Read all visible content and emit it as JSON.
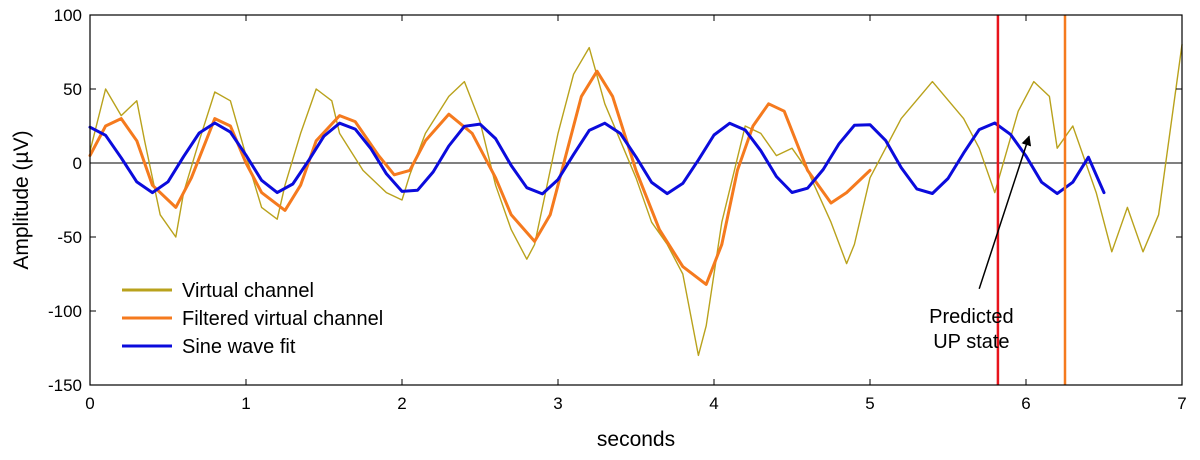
{
  "chart_data": {
    "type": "line",
    "xlabel": "seconds",
    "ylabel": "Amplitude (µV)",
    "xlim": [
      0,
      7
    ],
    "ylim": [
      -150,
      100
    ],
    "x_ticks": [
      0,
      1,
      2,
      3,
      4,
      5,
      6,
      7
    ],
    "y_ticks": [
      100,
      50,
      0,
      -50,
      -100,
      -150
    ],
    "grid": false,
    "zero_line": true,
    "legend_position": "bottom-left",
    "series": [
      {
        "name": "Virtual channel",
        "color": "#b9a21c",
        "x": [
          0,
          0.1,
          0.2,
          0.3,
          0.35,
          0.45,
          0.55,
          0.6,
          0.7,
          0.8,
          0.9,
          1.0,
          1.1,
          1.2,
          1.25,
          1.35,
          1.45,
          1.55,
          1.6,
          1.75,
          1.9,
          2.0,
          2.05,
          2.15,
          2.3,
          2.4,
          2.5,
          2.6,
          2.7,
          2.8,
          2.85,
          2.9,
          3.0,
          3.1,
          3.2,
          3.3,
          3.4,
          3.5,
          3.6,
          3.7,
          3.8,
          3.9,
          3.95,
          4.05,
          4.2,
          4.3,
          4.4,
          4.5,
          4.6,
          4.75,
          4.85,
          4.9,
          5.0,
          5.2,
          5.4,
          5.6,
          5.7,
          5.8,
          5.95,
          6.05,
          6.15,
          6.2,
          6.3,
          6.45,
          6.55,
          6.65,
          6.75,
          6.85,
          7.0
        ],
        "values": [
          8,
          50,
          32,
          42,
          15,
          -35,
          -50,
          -20,
          15,
          48,
          42,
          5,
          -30,
          -38,
          -15,
          20,
          50,
          42,
          20,
          -5,
          -20,
          -25,
          -8,
          20,
          45,
          55,
          28,
          -15,
          -45,
          -65,
          -55,
          -30,
          20,
          60,
          78,
          40,
          15,
          -10,
          -40,
          -55,
          -75,
          -130,
          -110,
          -40,
          25,
          20,
          5,
          10,
          -5,
          -40,
          -68,
          -55,
          -10,
          30,
          55,
          30,
          10,
          -20,
          35,
          55,
          45,
          10,
          25,
          -20,
          -60,
          -30,
          -60,
          -35,
          80
        ]
      },
      {
        "name": "Filtered virtual channel",
        "color": "#f57a1e",
        "x": [
          0,
          0.1,
          0.2,
          0.3,
          0.4,
          0.55,
          0.65,
          0.8,
          0.9,
          1.0,
          1.1,
          1.25,
          1.35,
          1.45,
          1.6,
          1.7,
          1.85,
          1.95,
          2.05,
          2.15,
          2.3,
          2.45,
          2.6,
          2.7,
          2.85,
          2.95,
          3.05,
          3.15,
          3.25,
          3.35,
          3.5,
          3.65,
          3.8,
          3.95,
          4.05,
          4.15,
          4.25,
          4.35,
          4.45,
          4.6,
          4.75,
          4.85,
          5.0
        ],
        "values": [
          5,
          25,
          30,
          15,
          -15,
          -30,
          -10,
          30,
          25,
          0,
          -20,
          -32,
          -15,
          15,
          32,
          28,
          5,
          -8,
          -5,
          15,
          33,
          20,
          -10,
          -35,
          -53,
          -35,
          5,
          45,
          62,
          45,
          -5,
          -45,
          -70,
          -82,
          -55,
          -5,
          25,
          40,
          35,
          -5,
          -27,
          -20,
          -5
        ]
      },
      {
        "name": "Sine wave fit",
        "color": "#0b0bdc",
        "x": [
          0,
          0.1,
          0.2,
          0.3,
          0.4,
          0.5,
          0.6,
          0.7,
          0.8,
          0.9,
          1.0,
          1.1,
          1.2,
          1.3,
          1.4,
          1.5,
          1.6,
          1.7,
          1.8,
          1.9,
          2.0,
          2.1,
          2.2,
          2.3,
          2.4,
          2.5,
          2.6,
          2.7,
          2.8,
          2.9,
          3.0,
          3.1,
          3.2,
          3.3,
          3.4,
          3.5,
          3.6,
          3.7,
          3.8,
          3.9,
          4.0,
          4.1,
          4.2,
          4.3,
          4.4,
          4.5,
          4.6,
          4.7,
          4.8,
          4.9,
          5.0,
          5.1,
          5.2,
          5.3,
          5.4,
          5.5,
          5.6,
          5.7,
          5.8,
          5.9,
          6.0,
          6.1,
          6.2,
          6.3,
          6.4,
          6.5
        ],
        "values": [
          24.2,
          18.7,
          3.5,
          -12.8,
          -20.0,
          -12.7,
          4.3,
          20.3,
          27.0,
          20.9,
          5.3,
          -11.7,
          -20.0,
          -14.2,
          1.4,
          18.2,
          26.9,
          22.9,
          9.8,
          -7.3,
          -19.2,
          -18.4,
          -6.0,
          11.5,
          24.8,
          26.3,
          16.5,
          -1.7,
          -16.7,
          -20.9,
          -11.2,
          5.8,
          22.0,
          26.9,
          19.9,
          4.1,
          -13.1,
          -20.7,
          -13.8,
          2.1,
          18.9,
          26.8,
          22.3,
          8.3,
          -9.1,
          -19.9,
          -17.0,
          -4.4,
          12.8,
          25.5,
          25.9,
          15.3,
          -3.1,
          -17.5,
          -20.6,
          -10.5,
          6.7,
          22.6,
          27.0,
          19.4,
          4.7,
          -13.0,
          -20.7,
          -13.0,
          3.9,
          -20.0
        ]
      }
    ],
    "vertical_markers": [
      {
        "x": 5.82,
        "color": "#e8141c"
      },
      {
        "x": 6.25,
        "color": "#f57a1e"
      }
    ],
    "annotation": {
      "text_lines": [
        "Predicted",
        "UP state"
      ],
      "text_anchor": [
        5.65,
        -108
      ],
      "arrow_from": [
        5.7,
        -85
      ],
      "arrow_to": [
        6.02,
        18
      ]
    }
  }
}
